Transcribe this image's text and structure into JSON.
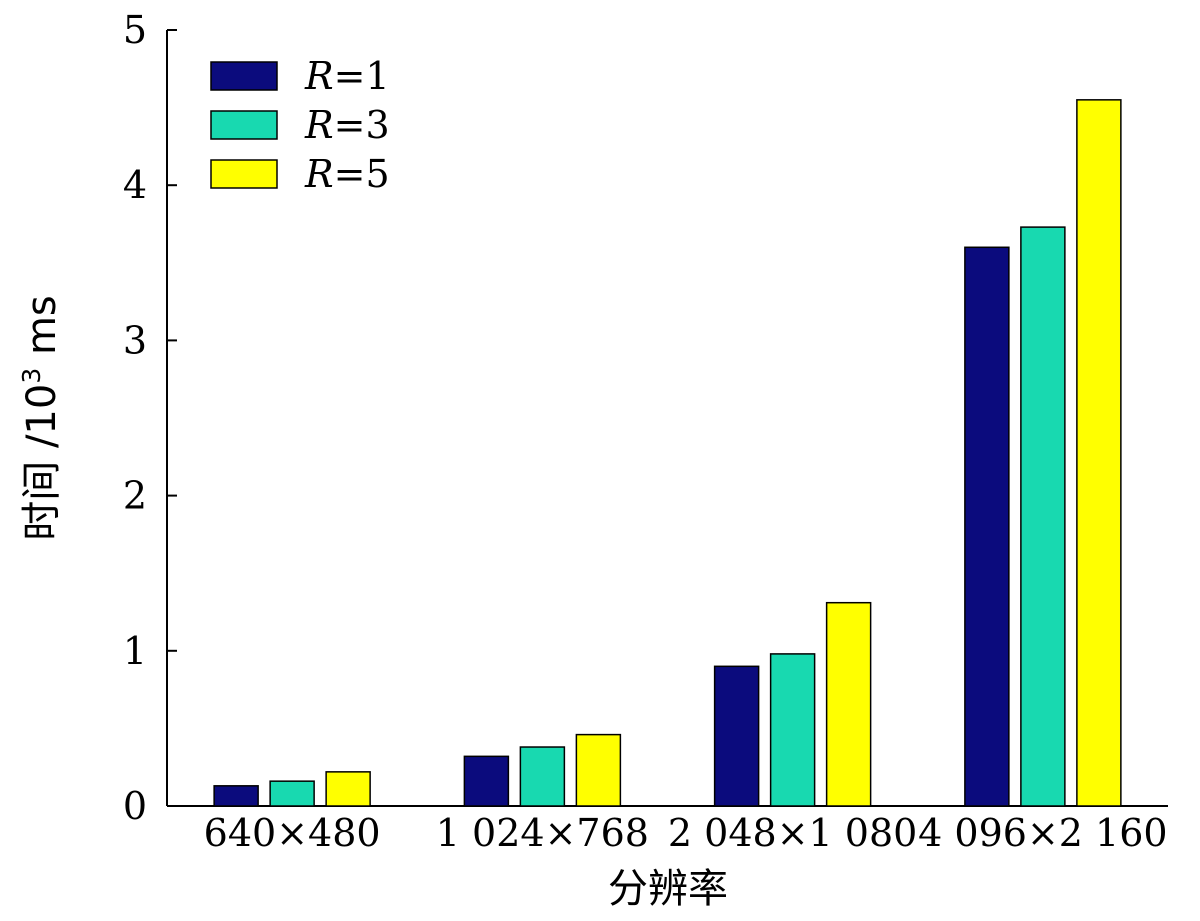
{
  "chart_data": {
    "type": "bar",
    "categories": [
      "640×480",
      "1 024×768",
      "2 048×1 080",
      "4 096×2 160"
    ],
    "series": [
      {
        "name": "R=1",
        "name_var": "R",
        "name_rest": "=1",
        "color": "#0b0b7d",
        "values": [
          0.13,
          0.32,
          0.9,
          3.6
        ]
      },
      {
        "name": "R=3",
        "name_var": "R",
        "name_rest": "=3",
        "color": "#18d9b0",
        "values": [
          0.16,
          0.38,
          0.98,
          3.73
        ]
      },
      {
        "name": "R=5",
        "name_var": "R",
        "name_rest": "=5",
        "color": "#ffff00",
        "values": [
          0.22,
          0.46,
          1.31,
          4.55
        ]
      }
    ],
    "xlabel": "分辨率",
    "ylabel": "时间 /10³ ms",
    "ylabel_main": "时间 /10",
    "ylabel_sup": "3",
    "ylabel_unit": "ms",
    "ylim": [
      0,
      5
    ],
    "yticks": [
      "0",
      "1",
      "2",
      "3",
      "4",
      "5"
    ],
    "legend_position": "top-left",
    "grid": false
  }
}
